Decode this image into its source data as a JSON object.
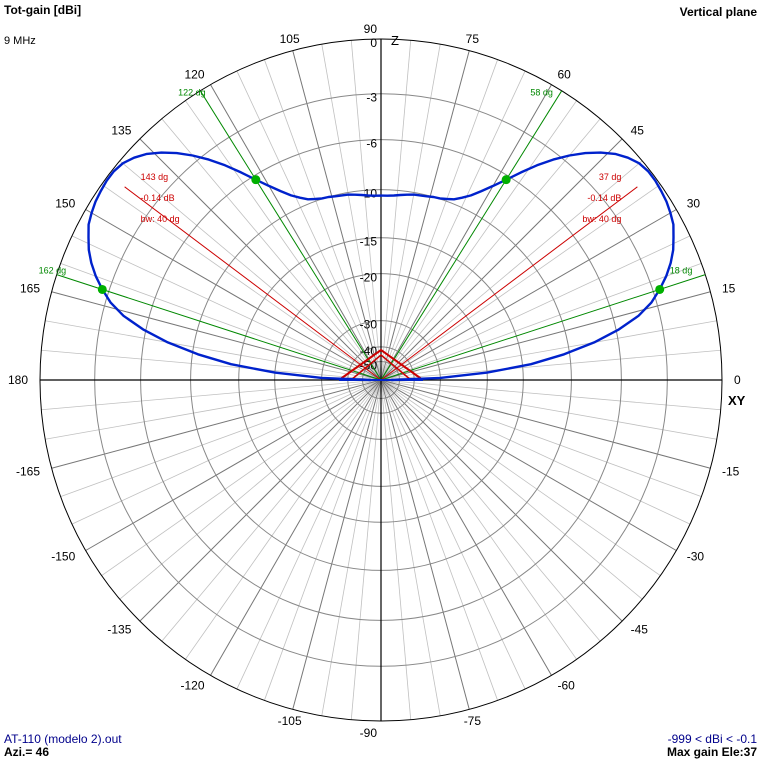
{
  "header": {
    "title": "Tot-gain [dBi]",
    "plane": "Vertical plane",
    "frequency": "9 MHz"
  },
  "footer": {
    "file": "AT-110 (modelo 2).out",
    "azimuth": "Azi.= 46",
    "range": "-999 < dBi < -0.1",
    "max_gain": "Max gain Ele:37"
  },
  "chart_data": {
    "type": "polar",
    "angle_labels": [
      "0",
      "15",
      "30",
      "45",
      "60",
      "75",
      "90",
      "105",
      "120",
      "135",
      "150",
      "165",
      "180",
      "-165",
      "-150",
      "-135",
      "-120",
      "-105",
      "-90",
      "-75",
      "-60",
      "-45",
      "-30",
      "-15"
    ],
    "radial_labels": [
      "0",
      "-3",
      "-6",
      "-10",
      "-15",
      "-20",
      "-30",
      "-40",
      "-50"
    ],
    "radial_levels_db": [
      0,
      -3,
      -6,
      -10,
      -15,
      -20,
      -30,
      -40,
      -50
    ],
    "axis_labels": {
      "zenith": "Z",
      "horizon": "XY"
    },
    "pattern_dbi": [
      [
        0,
        -60
      ],
      [
        2,
        -30
      ],
      [
        4,
        -20
      ],
      [
        6,
        -14
      ],
      [
        8,
        -10.5
      ],
      [
        10,
        -7.8
      ],
      [
        12,
        -5.8
      ],
      [
        14,
        -4.3
      ],
      [
        16,
        -3.3
      ],
      [
        18,
        -2.6
      ],
      [
        20,
        -2.0
      ],
      [
        22,
        -1.5
      ],
      [
        24,
        -1.1
      ],
      [
        26,
        -0.8
      ],
      [
        28,
        -0.5
      ],
      [
        30,
        -0.35
      ],
      [
        32,
        -0.22
      ],
      [
        34,
        -0.15
      ],
      [
        36,
        -0.1
      ],
      [
        37,
        -0.1
      ],
      [
        38,
        -0.1
      ],
      [
        40,
        -0.2
      ],
      [
        42,
        -0.45
      ],
      [
        44,
        -0.8
      ],
      [
        46,
        -1.3
      ],
      [
        48,
        -1.9
      ],
      [
        50,
        -2.6
      ],
      [
        52,
        -3.4
      ],
      [
        54,
        -4.3
      ],
      [
        56,
        -5.3
      ],
      [
        58,
        -6.3
      ],
      [
        60,
        -7.2
      ],
      [
        62,
        -8.0
      ],
      [
        64,
        -8.7
      ],
      [
        66,
        -9.2
      ],
      [
        68,
        -9.6
      ],
      [
        70,
        -9.8
      ],
      [
        72,
        -9.95
      ],
      [
        74,
        -10.0
      ],
      [
        76,
        -10.1
      ],
      [
        78,
        -10.15
      ],
      [
        80,
        -10.2
      ],
      [
        82,
        -10.3
      ],
      [
        84,
        -10.4
      ],
      [
        86,
        -10.5
      ],
      [
        88,
        -10.55
      ],
      [
        90,
        -10.55
      ],
      [
        92,
        -10.55
      ],
      [
        94,
        -10.5
      ],
      [
        96,
        -10.4
      ],
      [
        98,
        -10.3
      ],
      [
        100,
        -10.2
      ],
      [
        102,
        -10.15
      ],
      [
        104,
        -10.1
      ],
      [
        106,
        -10.0
      ],
      [
        108,
        -9.95
      ],
      [
        110,
        -9.8
      ],
      [
        112,
        -9.6
      ],
      [
        114,
        -9.2
      ],
      [
        116,
        -8.7
      ],
      [
        118,
        -8.0
      ],
      [
        120,
        -7.2
      ],
      [
        122,
        -6.3
      ],
      [
        124,
        -5.3
      ],
      [
        126,
        -4.3
      ],
      [
        128,
        -3.4
      ],
      [
        130,
        -2.6
      ],
      [
        132,
        -1.9
      ],
      [
        134,
        -1.3
      ],
      [
        136,
        -0.8
      ],
      [
        138,
        -0.45
      ],
      [
        140,
        -0.2
      ],
      [
        142,
        -0.1
      ],
      [
        143,
        -0.1
      ],
      [
        144,
        -0.1
      ],
      [
        146,
        -0.15
      ],
      [
        148,
        -0.22
      ],
      [
        150,
        -0.35
      ],
      [
        152,
        -0.5
      ],
      [
        154,
        -0.8
      ],
      [
        156,
        -1.1
      ],
      [
        158,
        -1.5
      ],
      [
        160,
        -2.0
      ],
      [
        162,
        -2.6
      ],
      [
        164,
        -3.3
      ],
      [
        166,
        -4.3
      ],
      [
        168,
        -5.8
      ],
      [
        170,
        -7.8
      ],
      [
        172,
        -10.5
      ],
      [
        174,
        -14
      ],
      [
        176,
        -20
      ],
      [
        178,
        -30
      ],
      [
        180,
        -60
      ]
    ],
    "max_lines": [
      {
        "angle": 37,
        "labels": [
          "37 dg",
          "-0.14 dB",
          "bw: 40 dg"
        ]
      },
      {
        "angle": 143,
        "labels": [
          "143 dg",
          "-0.14 dB",
          "bw: 40 dg"
        ]
      }
    ],
    "beamwidth_lines": [
      {
        "angle": 18,
        "label": "18 dg"
      },
      {
        "angle": 58,
        "label": "58 dg"
      },
      {
        "angle": 122,
        "label": "122 dg"
      },
      {
        "angle": 162,
        "label": "162 dg"
      }
    ],
    "colors": {
      "pattern": "#0022cc",
      "max": "#cc0000",
      "beamwidth": "#008800",
      "grid": "#000000",
      "subgrid": "#c0c0c0",
      "footer_text": "#00008b"
    },
    "grid": true
  }
}
